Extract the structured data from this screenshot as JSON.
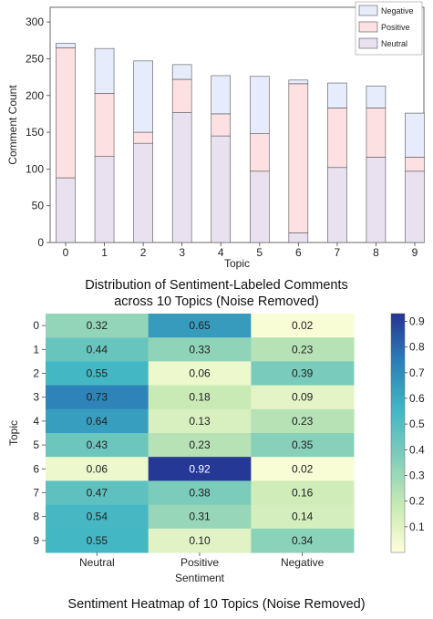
{
  "colors": {
    "neutral": "#e9e0f0",
    "positive": "#fde0e2",
    "negative": "#e6ecfb",
    "bar_edge": "#555555",
    "cmap": [
      "#ffffd9",
      "#c7e9b4",
      "#7fcdbb",
      "#41b6c4",
      "#2c7fb8",
      "#253494"
    ]
  },
  "chart_data": [
    {
      "type": "bar",
      "stacked": true,
      "categories": [
        "0",
        "1",
        "2",
        "3",
        "4",
        "5",
        "6",
        "7",
        "8",
        "9"
      ],
      "series": [
        {
          "name": "Neutral",
          "values": [
            88,
            117,
            135,
            177,
            145,
            97,
            13,
            102,
            116,
            97
          ]
        },
        {
          "name": "Positive",
          "values": [
            177,
            86,
            15,
            45,
            30,
            51,
            203,
            81,
            67,
            19
          ]
        },
        {
          "name": "Negative",
          "values": [
            6,
            61,
            97,
            20,
            52,
            78,
            5,
            34,
            30,
            60
          ]
        }
      ],
      "xlabel": "Topic",
      "ylabel": "Comment Count",
      "ylim": [
        0,
        320
      ],
      "yticks": [
        0,
        50,
        100,
        150,
        200,
        250,
        300
      ],
      "legend": {
        "position": "top-right",
        "order": [
          "Negative",
          "Positive",
          "Neutral"
        ]
      },
      "title": "Distribution of Sentiment-Labeled Comments\nacross 10 Topics (Noise Removed)",
      "grid": false
    },
    {
      "type": "heatmap",
      "rows": [
        "0",
        "1",
        "2",
        "3",
        "4",
        "5",
        "6",
        "7",
        "8",
        "9"
      ],
      "columns": [
        "Neutral",
        "Positive",
        "Negative"
      ],
      "values": [
        [
          0.32,
          0.65,
          0.02
        ],
        [
          0.44,
          0.33,
          0.23
        ],
        [
          0.55,
          0.06,
          0.39
        ],
        [
          0.73,
          0.18,
          0.09
        ],
        [
          0.64,
          0.13,
          0.23
        ],
        [
          0.43,
          0.23,
          0.35
        ],
        [
          0.06,
          0.92,
          0.02
        ],
        [
          0.47,
          0.38,
          0.16
        ],
        [
          0.54,
          0.31,
          0.14
        ],
        [
          0.55,
          0.1,
          0.34
        ]
      ],
      "xlabel": "Sentiment",
      "ylabel": "Topic",
      "colorbar": {
        "range": [
          0.0,
          0.93
        ],
        "ticks": [
          "0.1",
          "0.2",
          "0.3",
          "0.4",
          "0.5",
          "0.6",
          "0.7",
          "0.8",
          "0.9"
        ]
      },
      "title": "Sentiment Heatmap of 10 Topics (Noise Removed)"
    }
  ]
}
